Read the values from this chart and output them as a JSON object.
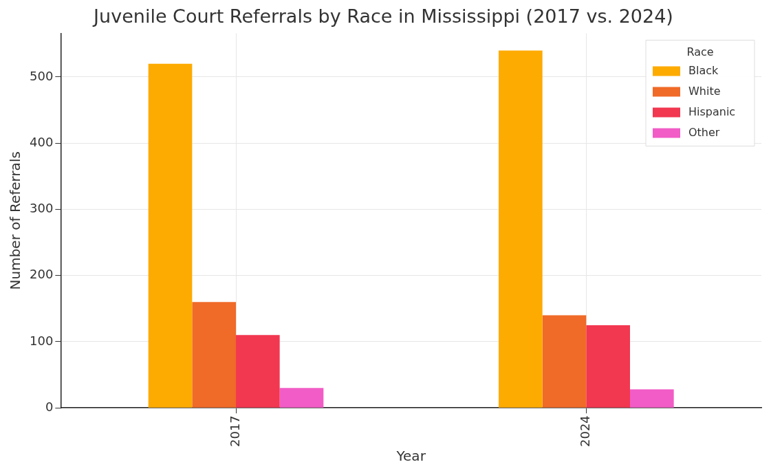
{
  "chart_data": {
    "type": "bar",
    "title": "Juvenile Court Referrals by Race in Mississippi (2017 vs. 2024)",
    "xlabel": "Year",
    "ylabel": "Number of Referrals",
    "legend_title": "Race",
    "categories": [
      "2017",
      "2024"
    ],
    "series": [
      {
        "name": "Black",
        "color": "#fdab00",
        "values": [
          520,
          540
        ]
      },
      {
        "name": "White",
        "color": "#f06a28",
        "values": [
          160,
          140
        ]
      },
      {
        "name": "Hispanic",
        "color": "#f23750",
        "values": [
          110,
          125
        ]
      },
      {
        "name": "Other",
        "color": "#f25cc6",
        "values": [
          30,
          28
        ]
      }
    ],
    "ylim": [
      0,
      566
    ],
    "yticks": [
      0,
      100,
      200,
      300,
      400,
      500
    ],
    "grid": true,
    "legend": "top right"
  }
}
